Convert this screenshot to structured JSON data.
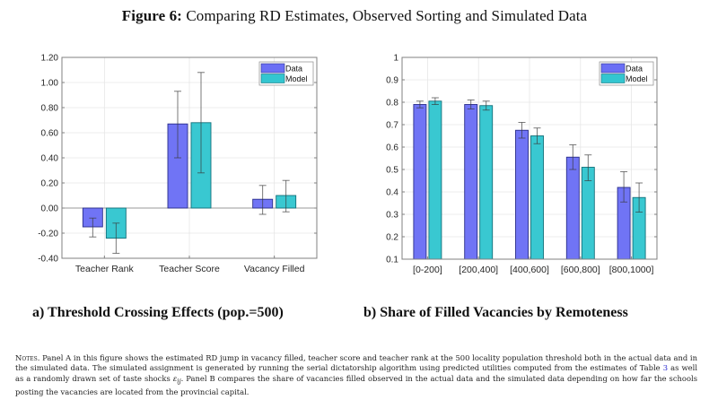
{
  "figure": {
    "label": "Figure 6:",
    "title": "Comparing RD Estimates, Observed Sorting and Simulated Data"
  },
  "colors": {
    "data": "#6b6ff5",
    "model": "#33c6d0",
    "data_edge": "#2a2e8a",
    "model_edge": "#12707a",
    "axis": "#808080",
    "grid": "#e6e6e6"
  },
  "panels": {
    "a": {
      "caption": "a) Threshold Crossing Effects (pop.=500)"
    },
    "b": {
      "caption": "b) Share of Filled Vacancies by Remoteness"
    }
  },
  "chart_data": [
    {
      "type": "bar",
      "panel": "a",
      "title": "",
      "xlabel": "",
      "ylabel": "",
      "ylim": [
        -0.4,
        1.2
      ],
      "yticks": [
        1.2,
        1.0,
        0.8,
        0.6,
        0.4,
        0.2,
        0.0,
        -0.2,
        -0.4
      ],
      "ytick_labels": [
        "1.20",
        "1.00",
        "0.80",
        "0.60",
        "0.40",
        "0.20",
        "0.00",
        "-0.20",
        "-0.40"
      ],
      "grid": true,
      "legend": {
        "placement": "top-right",
        "entries": [
          "Data",
          "Model"
        ]
      },
      "categories": [
        "Teacher Rank",
        "Teacher Score",
        "Vacancy Filled"
      ],
      "series": [
        {
          "name": "Data",
          "values": [
            -0.15,
            0.67,
            0.07
          ],
          "err_low": [
            -0.23,
            0.4,
            -0.05
          ],
          "err_high": [
            -0.08,
            0.93,
            0.18
          ]
        },
        {
          "name": "Model",
          "values": [
            -0.24,
            0.68,
            0.1
          ],
          "err_low": [
            -0.36,
            0.28,
            -0.03
          ],
          "err_high": [
            -0.12,
            1.08,
            0.22
          ]
        }
      ]
    },
    {
      "type": "bar",
      "panel": "b",
      "title": "",
      "xlabel": "",
      "ylabel": "",
      "ylim": [
        0.1,
        1.0
      ],
      "yticks": [
        1.0,
        0.9,
        0.8,
        0.7,
        0.6,
        0.5,
        0.4,
        0.3,
        0.2,
        0.1
      ],
      "ytick_labels": [
        "1",
        "0.9",
        "0.8",
        "0.7",
        "0.6",
        "0.5",
        "0.4",
        "0.3",
        "0.2",
        "0.1"
      ],
      "grid": true,
      "legend": {
        "placement": "top-right",
        "entries": [
          "Data",
          "Model"
        ]
      },
      "categories": [
        "[0-200]",
        "[200,400]",
        "[400,600]",
        "[600,800]",
        "[800,1000]"
      ],
      "series": [
        {
          "name": "Data",
          "values": [
            0.79,
            0.79,
            0.675,
            0.555,
            0.42
          ],
          "err_low": [
            0.775,
            0.77,
            0.64,
            0.5,
            0.355
          ],
          "err_high": [
            0.805,
            0.81,
            0.71,
            0.61,
            0.49
          ]
        },
        {
          "name": "Model",
          "values": [
            0.805,
            0.785,
            0.65,
            0.51,
            0.375
          ],
          "err_low": [
            0.79,
            0.765,
            0.615,
            0.45,
            0.31
          ],
          "err_high": [
            0.82,
            0.805,
            0.685,
            0.565,
            0.44
          ]
        }
      ]
    }
  ],
  "notes": {
    "label": "Notes.",
    "text_1": " Panel A in this figure shows the estimated RD jump in vacancy filled, teacher score and teacher rank at the 500 locality population threshold both in the actual data and in the simulated data. The simulated assignment is generated by running the serial dictatorship algorithm using predicted utilities computed from the estimates of Table ",
    "table_ref": "3",
    "text_2": " as well as a randomly drawn set of taste shocks ",
    "symbol": "ε",
    "symbol_sub": "ij",
    "text_3": ". Panel B compares the share of vacancies filled observed in the actual data and the simulated data depending on how far the schools posting the vacancies are located from the provincial capital."
  }
}
